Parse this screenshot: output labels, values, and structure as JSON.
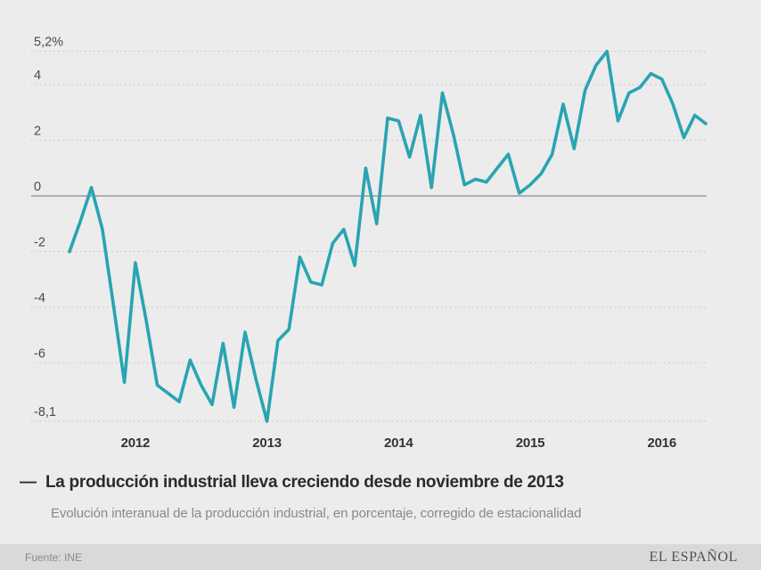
{
  "chart_data": {
    "type": "line",
    "title": "La producción industrial lleva creciendo desde noviembre de 2013",
    "title_dash": "—",
    "subtitle": "Evolución interanual de la producción industrial, en porcentaje, corregido de estacionalidad",
    "source": "Fuente: INE",
    "brand": "EL ESPAÑOL",
    "unit": "%",
    "ylim": [
      -8.1,
      5.2
    ],
    "grid": "dotted horizontal lines, solid zero line",
    "legend_position": "none",
    "y_ticks": [
      {
        "label": "5,2%",
        "value": 5.2,
        "zero_line": false
      },
      {
        "label": "4",
        "value": 4,
        "zero_line": false
      },
      {
        "label": "2",
        "value": 2,
        "zero_line": false
      },
      {
        "label": "0",
        "value": 0,
        "zero_line": true
      },
      {
        "label": "-2",
        "value": -2,
        "zero_line": false
      },
      {
        "label": "-4",
        "value": -4,
        "zero_line": false
      },
      {
        "label": "-6",
        "value": -6,
        "zero_line": false
      },
      {
        "label": "-8,1",
        "value": -8.1,
        "zero_line": false
      }
    ],
    "x_ticks": [
      {
        "label": "2012",
        "month_index": 6
      },
      {
        "label": "2013",
        "month_index": 18
      },
      {
        "label": "2014",
        "month_index": 30
      },
      {
        "label": "2015",
        "month_index": 42
      },
      {
        "label": "2016",
        "month_index": 54
      }
    ],
    "series": [
      {
        "name": "Producción industrial, variación interanual (%)",
        "values": [
          -2.0,
          -0.9,
          0.3,
          -1.2,
          -3.9,
          -6.7,
          -2.4,
          -4.5,
          -6.8,
          -7.1,
          -7.4,
          -5.9,
          -6.8,
          -7.5,
          -5.3,
          -7.6,
          -4.9,
          -6.6,
          -8.1,
          -5.2,
          -4.8,
          -2.2,
          -3.1,
          -3.2,
          -1.7,
          -1.2,
          -2.5,
          1.0,
          -1.0,
          2.8,
          2.7,
          1.4,
          2.9,
          0.3,
          3.7,
          2.2,
          0.4,
          0.6,
          0.5,
          1.0,
          1.5,
          0.1,
          0.4,
          0.8,
          1.5,
          3.3,
          1.7,
          3.8,
          4.7,
          5.2,
          2.7,
          3.7,
          3.9,
          4.4,
          4.2,
          3.3,
          2.1,
          2.9,
          2.6
        ]
      }
    ],
    "colors": {
      "line": "#29a4b2",
      "background": "#ececec",
      "footer_background": "#d9d9d9",
      "grid": "#c6c6c6",
      "zero_line": "#999999"
    }
  }
}
